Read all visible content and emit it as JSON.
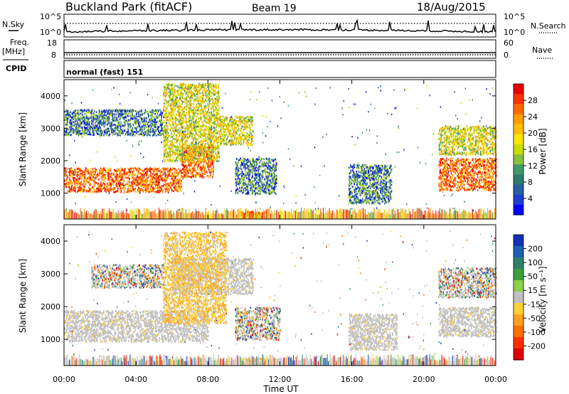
{
  "header": {
    "station": "Buckland Park (fitACF)",
    "beam": "Beam 19",
    "date": "18/Aug/2015"
  },
  "noise_panel": {
    "left_label": "N.Sky",
    "right_label": "N.Search",
    "left_ticks": [
      "10^5",
      "10^0"
    ],
    "right_ticks": [
      "10^5",
      "10^0"
    ]
  },
  "freq_panel": {
    "left_label_1": "Freq.",
    "left_label_2": "[MHz]",
    "right_label": "Nave",
    "left_ticks": [
      "18",
      "8"
    ],
    "right_ticks": [
      "60",
      "0"
    ]
  },
  "cpid": {
    "label": "CPID",
    "mode": "normal (fast) 151"
  },
  "axes": {
    "ylabel": "Slant Range [km]",
    "yticks": [
      "4000",
      "3000",
      "2000",
      "1000"
    ],
    "xticks": [
      "00:00",
      "04:00",
      "08:00",
      "12:00",
      "16:00",
      "20:00",
      "00:00"
    ],
    "xlabel": "Time UT"
  },
  "power_colorbar": {
    "label": "Power [dB]",
    "ticks": [
      "28",
      "24",
      "20",
      "16",
      "12",
      "8",
      "4"
    ],
    "colors": [
      "#e60000",
      "#ff3300",
      "#ff6a00",
      "#ff9f00",
      "#ffc000",
      "#ffe400",
      "#c8e000",
      "#88c040",
      "#3f9a6a",
      "#2f7a6a",
      "#2a5ea0",
      "#1f3fd0",
      "#0000ff"
    ]
  },
  "velocity_colorbar": {
    "label": "Velocity [m s⁻¹]",
    "ticks": [
      "200",
      "100",
      "50",
      "15",
      "-15",
      "-50",
      "-100",
      "-200"
    ],
    "colors": [
      "#1230b8",
      "#1f5fb0",
      "#2e7f6a",
      "#3a9f3a",
      "#8ed04a",
      "#c0c0c0",
      "#ffd23a",
      "#ffa020",
      "#ff7000",
      "#ff3000",
      "#e00000"
    ]
  },
  "chart_data": [
    {
      "type": "heatmap",
      "title": "Power",
      "xlabel": "Time UT",
      "ylabel": "Slant Range [km]",
      "xlim": [
        0,
        24
      ],
      "ylim": [
        200,
        4500
      ],
      "colorbar": "Power [dB]",
      "echo_regions": [
        {
          "t0": 0,
          "t1": 6.5,
          "r0": 1050,
          "r1": 1800,
          "level": "high"
        },
        {
          "t0": 6.5,
          "t1": 8.3,
          "r0": 1500,
          "r1": 2500,
          "level": "high"
        },
        {
          "t0": 0,
          "t1": 5.5,
          "r0": 2800,
          "r1": 3600,
          "level": "low"
        },
        {
          "t0": 5.5,
          "t1": 8.6,
          "r0": 2000,
          "r1": 4400,
          "level": "mid"
        },
        {
          "t0": 8.6,
          "t1": 10.5,
          "r0": 2500,
          "r1": 3400,
          "level": "mid"
        },
        {
          "t0": 9.5,
          "t1": 11.8,
          "r0": 1000,
          "r1": 2100,
          "level": "low"
        },
        {
          "t0": 15.8,
          "t1": 18.2,
          "r0": 700,
          "r1": 1900,
          "level": "low"
        },
        {
          "t0": 20.8,
          "t1": 24,
          "r0": 1100,
          "r1": 2100,
          "level": "high"
        },
        {
          "t0": 20.8,
          "t1": 24,
          "r0": 2200,
          "r1": 3100,
          "level": "mid"
        },
        {
          "t0": 9.8,
          "t1": 11.2,
          "r0": 250,
          "r1": 450,
          "level": "high"
        }
      ]
    },
    {
      "type": "heatmap",
      "title": "Velocity",
      "xlabel": "Time UT",
      "ylabel": "Slant Range [km]",
      "xlim": [
        0,
        24
      ],
      "ylim": [
        200,
        4500
      ],
      "colorbar": "Velocity [m s⁻¹]",
      "echo_regions": [
        {
          "t0": 0,
          "t1": 8,
          "r0": 950,
          "r1": 1900,
          "level": "ground"
        },
        {
          "t0": 6,
          "t1": 10.5,
          "r0": 2400,
          "r1": 3500,
          "level": "ground"
        },
        {
          "t0": 5.5,
          "t1": 9,
          "r0": 1500,
          "r1": 4300,
          "level": "neg"
        },
        {
          "t0": 1.5,
          "t1": 5.5,
          "r0": 2600,
          "r1": 3300,
          "level": "mixed"
        },
        {
          "t0": 9.5,
          "t1": 12,
          "r0": 1000,
          "r1": 2000,
          "level": "mixed"
        },
        {
          "t0": 15.8,
          "t1": 18.5,
          "r0": 700,
          "r1": 1800,
          "level": "ground"
        },
        {
          "t0": 20.8,
          "t1": 24,
          "r0": 1100,
          "r1": 2000,
          "level": "ground"
        },
        {
          "t0": 20.8,
          "t1": 24,
          "r0": 2300,
          "r1": 3200,
          "level": "mixed"
        },
        {
          "t0": 9.8,
          "t1": 11.2,
          "r0": 250,
          "r1": 450,
          "level": "neg"
        }
      ]
    }
  ]
}
